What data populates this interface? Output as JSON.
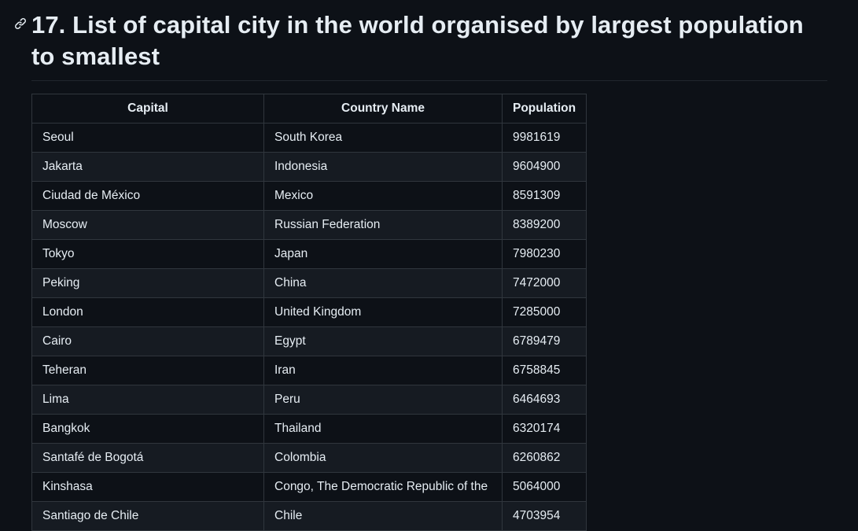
{
  "heading": {
    "title": "17. List of capital city in the world organised by largest population to smallest",
    "anchor_icon": "link-icon"
  },
  "table": {
    "headers": {
      "capital": "Capital",
      "country": "Country Name",
      "population": "Population"
    },
    "rows": [
      {
        "capital": "Seoul",
        "country": "South Korea",
        "population": "9981619"
      },
      {
        "capital": "Jakarta",
        "country": "Indonesia",
        "population": "9604900"
      },
      {
        "capital": "Ciudad de México",
        "country": "Mexico",
        "population": "8591309"
      },
      {
        "capital": "Moscow",
        "country": "Russian Federation",
        "population": "8389200"
      },
      {
        "capital": "Tokyo",
        "country": "Japan",
        "population": "7980230"
      },
      {
        "capital": "Peking",
        "country": "China",
        "population": "7472000"
      },
      {
        "capital": "London",
        "country": "United Kingdom",
        "population": "7285000"
      },
      {
        "capital": "Cairo",
        "country": "Egypt",
        "population": "6789479"
      },
      {
        "capital": "Teheran",
        "country": "Iran",
        "population": "6758845"
      },
      {
        "capital": "Lima",
        "country": "Peru",
        "population": "6464693"
      },
      {
        "capital": "Bangkok",
        "country": "Thailand",
        "population": "6320174"
      },
      {
        "capital": "Santafé de Bogotá",
        "country": "Colombia",
        "population": "6260862"
      },
      {
        "capital": "Kinshasa",
        "country": "Congo, The Democratic Republic of the",
        "population": "5064000"
      },
      {
        "capital": "Santiago de Chile",
        "country": "Chile",
        "population": "4703954"
      }
    ]
  },
  "colors": {
    "background": "#0d1117",
    "row_alt": "#161b22",
    "border": "#30363d",
    "text": "#e6edf3"
  }
}
